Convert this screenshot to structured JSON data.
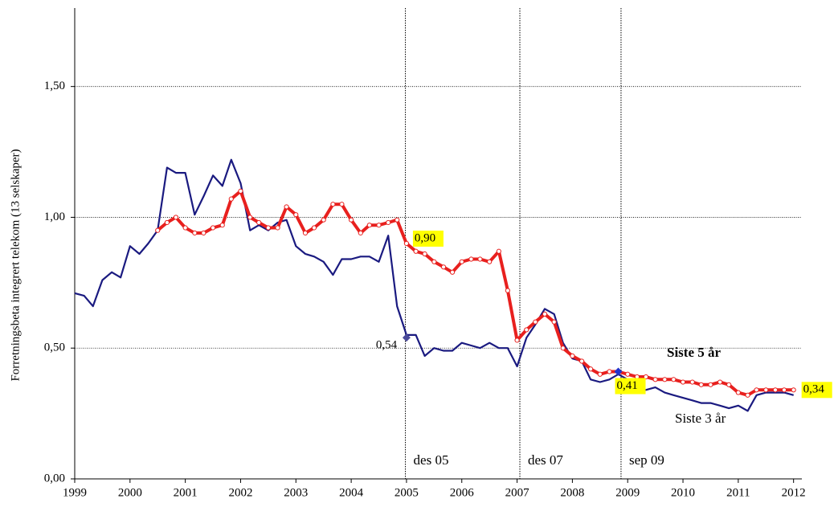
{
  "chart_data": {
    "type": "line",
    "y_label": "Forretningsbeta integrert telekom (13 selskaper)",
    "x": [
      1999.0,
      1999.17,
      1999.33,
      1999.5,
      1999.67,
      1999.83,
      2000.0,
      2000.17,
      2000.33,
      2000.5,
      2000.67,
      2000.83,
      2001.0,
      2001.17,
      2001.33,
      2001.5,
      2001.67,
      2001.83,
      2002.0,
      2002.17,
      2002.33,
      2002.5,
      2002.67,
      2002.83,
      2003.0,
      2003.17,
      2003.33,
      2003.5,
      2003.67,
      2003.83,
      2004.0,
      2004.17,
      2004.33,
      2004.5,
      2004.67,
      2004.83,
      2005.0,
      2005.17,
      2005.33,
      2005.5,
      2005.67,
      2005.83,
      2006.0,
      2006.17,
      2006.33,
      2006.5,
      2006.67,
      2006.83,
      2007.0,
      2007.17,
      2007.33,
      2007.5,
      2007.67,
      2007.83,
      2008.0,
      2008.17,
      2008.33,
      2008.5,
      2008.67,
      2008.83,
      2009.0,
      2009.17,
      2009.33,
      2009.5,
      2009.67,
      2009.83,
      2010.0,
      2010.17,
      2010.33,
      2010.5,
      2010.67,
      2010.83,
      2011.0,
      2011.17,
      2011.33,
      2011.5,
      2011.67,
      2011.83,
      2012.0
    ],
    "series": [
      {
        "name": "Siste 3 år",
        "color": "#1a1a80",
        "values": [
          0.71,
          0.7,
          0.66,
          0.76,
          0.79,
          0.77,
          0.89,
          0.86,
          0.9,
          0.95,
          1.19,
          1.17,
          1.17,
          1.01,
          1.08,
          1.16,
          1.12,
          1.22,
          1.13,
          0.95,
          0.97,
          0.95,
          0.98,
          0.99,
          0.89,
          0.86,
          0.85,
          0.83,
          0.78,
          0.84,
          0.84,
          0.85,
          0.85,
          0.83,
          0.93,
          0.66,
          0.55,
          0.55,
          0.47,
          0.5,
          0.49,
          0.49,
          0.52,
          0.51,
          0.5,
          0.52,
          0.5,
          0.5,
          0.43,
          0.54,
          0.59,
          0.65,
          0.63,
          0.52,
          0.46,
          0.45,
          0.38,
          0.37,
          0.38,
          0.4,
          0.38,
          0.34,
          0.34,
          0.35,
          0.33,
          0.32,
          0.31,
          0.3,
          0.29,
          0.29,
          0.28,
          0.27,
          0.28,
          0.26,
          0.32,
          0.33,
          0.33,
          0.33,
          0.32
        ]
      },
      {
        "name": "Siste 5 år",
        "color": "#e8201e",
        "values": [
          null,
          null,
          null,
          null,
          null,
          null,
          null,
          null,
          null,
          0.95,
          0.98,
          1.0,
          0.96,
          0.94,
          0.94,
          0.96,
          0.97,
          1.07,
          1.1,
          1.0,
          0.98,
          0.96,
          0.96,
          1.04,
          1.01,
          0.94,
          0.96,
          0.99,
          1.05,
          1.05,
          0.99,
          0.94,
          0.97,
          0.97,
          0.98,
          0.99,
          0.9,
          0.87,
          0.86,
          0.83,
          0.81,
          0.79,
          0.83,
          0.84,
          0.84,
          0.83,
          0.87,
          0.72,
          0.53,
          0.57,
          0.6,
          0.63,
          0.6,
          0.5,
          0.47,
          0.45,
          0.42,
          0.4,
          0.41,
          0.41,
          0.4,
          0.39,
          0.39,
          0.38,
          0.38,
          0.38,
          0.37,
          0.37,
          0.36,
          0.36,
          0.37,
          0.36,
          0.33,
          0.32,
          0.34,
          0.34,
          0.34,
          0.34,
          0.34
        ]
      }
    ],
    "xlim": [
      1999,
      2012.15
    ],
    "xticks": [
      1999,
      2000,
      2001,
      2002,
      2003,
      2004,
      2005,
      2006,
      2007,
      2008,
      2009,
      2010,
      2011,
      2012
    ],
    "ylim": [
      0,
      1.8
    ],
    "yticks": [
      {
        "value": 0,
        "label": "0,00"
      },
      {
        "value": 0.5,
        "label": "0,50"
      },
      {
        "value": 1.0,
        "label": "1,00"
      },
      {
        "value": 1.5,
        "label": "1,50"
      }
    ],
    "grid": true,
    "vlines": [
      {
        "x": 2004.98,
        "label": "des 05"
      },
      {
        "x": 2007.05,
        "label": "des 07"
      },
      {
        "x": 2008.88,
        "label": "sep 09"
      }
    ],
    "annotations": [
      {
        "x": 2005,
        "y": 0.54,
        "label": "0,54",
        "marker": "diamond"
      },
      {
        "x": 2005,
        "y": 0.9,
        "label": "0,90",
        "highlight": true
      },
      {
        "x": 2008.83,
        "y": 0.41,
        "label": "0,41",
        "highlight": true,
        "marker": "diamond"
      },
      {
        "x": 2012,
        "y": 0.34,
        "label": "0,34",
        "highlight": true
      }
    ]
  }
}
